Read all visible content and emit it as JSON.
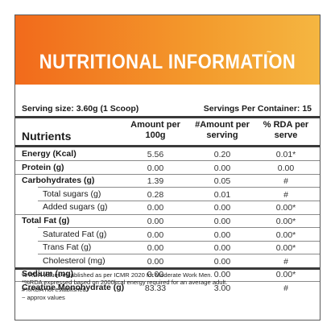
{
  "banner": {
    "title": "NUTRITIONAL INFORMATION",
    "tilde": "~"
  },
  "serving": {
    "size": "Serving size: 3.60g (1 Scoop)",
    "per_container": "Servings Per Container: 15"
  },
  "table": {
    "headers": {
      "nutrients": "Nutrients",
      "amount100": [
        "Amount per",
        "100g"
      ],
      "amountServing": [
        "#Amount per",
        "serving"
      ],
      "rda": [
        "% RDA per",
        "serve"
      ]
    },
    "rows": [
      {
        "label": "Energy (Kcal)",
        "bold": true,
        "indent": false,
        "v1": "5.56",
        "v2": "0.20",
        "v3": "0.01*"
      },
      {
        "label": "Protein (g)",
        "bold": true,
        "indent": false,
        "v1": "0.00",
        "v2": "0.00",
        "v3": "0.00"
      },
      {
        "label": "Carbohydrates (g)",
        "bold": true,
        "indent": false,
        "v1": "1.39",
        "v2": "0.05",
        "v3": "#"
      },
      {
        "label": "Total sugars (g)",
        "bold": false,
        "indent": true,
        "v1": "0.28",
        "v2": "0.01",
        "v3": "#"
      },
      {
        "label": "Added sugars (g)",
        "bold": false,
        "indent": true,
        "v1": "0.00",
        "v2": "0.00",
        "v3": "0.00*"
      },
      {
        "label": "Total Fat (g)",
        "bold": true,
        "indent": false,
        "v1": "0.00",
        "v2": "0.00",
        "v3": "0.00*"
      },
      {
        "label": "Saturated Fat (g)",
        "bold": false,
        "indent": true,
        "v1": "0.00",
        "v2": "0.00",
        "v3": "0.00*"
      },
      {
        "label": "Trans Fat (g)",
        "bold": false,
        "indent": true,
        "v1": "0.00",
        "v2": "0.00",
        "v3": "0.00*"
      },
      {
        "label": "Cholesterol (mg)",
        "bold": false,
        "indent": true,
        "v1": "0.00",
        "v2": "0.00",
        "v3": "#"
      },
      {
        "label": "Sodium (mg)",
        "bold": true,
        "indent": false,
        "v1": "0.00",
        "v2": "0.00",
        "v3": "0.00*"
      },
      {
        "label": "Creatine Monohydrate (g)",
        "bold": true,
        "indent": false,
        "v1": "83.33",
        "v2": "3.00",
        "v3": "#"
      }
    ]
  },
  "notes": [
    "% RDA values established as per ICMR 2020 for Moderate Work Men.",
    "*%RDA expressed based on 2000kcal energy required for an average adult.",
    "#%RDA not established.",
    "~ approx values"
  ],
  "colors": {
    "banner_start": "#f26a1b",
    "banner_end": "#f5b641",
    "text": "#1a1a1a",
    "rule": "#3a3a3a"
  }
}
